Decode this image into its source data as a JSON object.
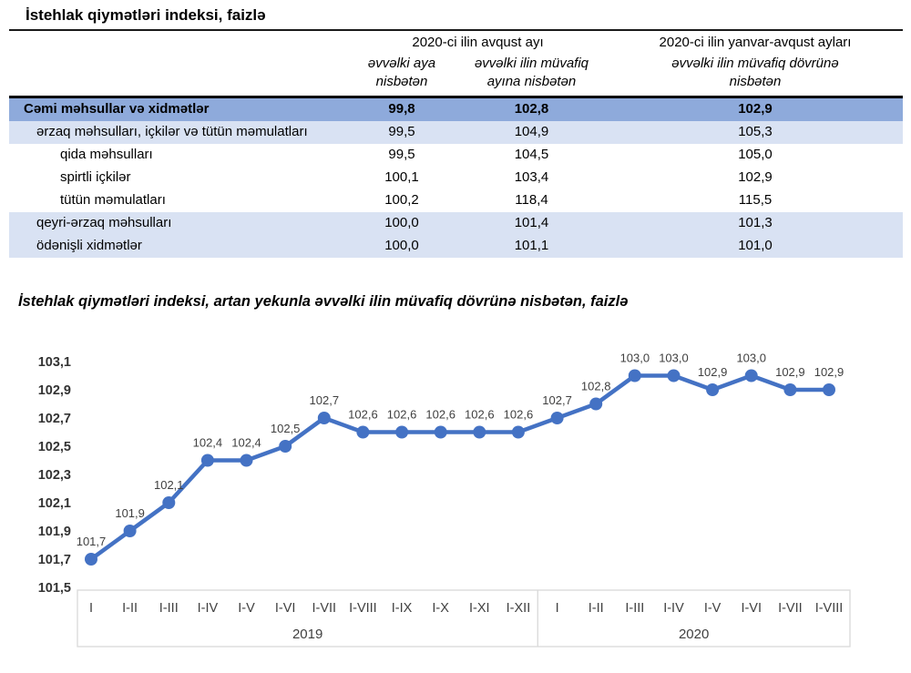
{
  "table": {
    "title": "İstehlak qiymətləri indeksi, faizlə",
    "col_groups": [
      {
        "label": "2020-ci ilin avqust ayı"
      },
      {
        "label": "2020-ci ilin yanvar-avqust ayları"
      }
    ],
    "subheaders": [
      "əvvəlki aya nisbətən",
      "əvvəlki ilin müvafiq ayına nisbətən",
      "əvvəlki ilin müvafiq dövrünə nisbətən"
    ],
    "rows": [
      {
        "label": "Cəmi məhsullar və xidmətlər",
        "values": [
          "99,8",
          "102,8",
          "102,9"
        ],
        "style": "total"
      },
      {
        "label": "ərzaq məhsulları, içkilər və tütün məmulatları",
        "values": [
          "99,5",
          "104,9",
          "105,3"
        ],
        "style": "group"
      },
      {
        "label": "qida məhsulları",
        "values": [
          "99,5",
          "104,5",
          "105,0"
        ],
        "style": "sub"
      },
      {
        "label": "spirtli içkilər",
        "values": [
          "100,1",
          "103,4",
          "102,9"
        ],
        "style": "sub"
      },
      {
        "label": "tütün məmulatları",
        "values": [
          "100,2",
          "118,4",
          "115,5"
        ],
        "style": "sub"
      },
      {
        "label": "qeyri-ərzaq məhsulları",
        "values": [
          "100,0",
          "101,4",
          "101,3"
        ],
        "style": "group"
      },
      {
        "label": "ödənişli xidmətlər",
        "values": [
          "100,0",
          "101,1",
          "101,0"
        ],
        "style": "group"
      }
    ]
  },
  "chart_data": {
    "type": "line",
    "title": "İstehlak qiymətləri indeksi, artan yekunla əvvəlki ilin müvafiq dövrünə nisbətən, faizlə",
    "x": [
      "I",
      "I-II",
      "I-III",
      "I-IV",
      "I-V",
      "I-VI",
      "I-VII",
      "I-VIII",
      "I-IX",
      "I-X",
      "I-XI",
      "I-XII",
      "I",
      "I-II",
      "I-III",
      "I-IV",
      "I-V",
      "I-VI",
      "I-VII",
      "I-VIII"
    ],
    "year_groups": [
      {
        "label": "2019",
        "count": 12
      },
      {
        "label": "2020",
        "count": 8
      }
    ],
    "values": [
      101.7,
      101.9,
      102.1,
      102.4,
      102.4,
      102.5,
      102.7,
      102.6,
      102.6,
      102.6,
      102.6,
      102.6,
      102.7,
      102.8,
      103.0,
      103.0,
      102.9,
      103.0,
      102.9,
      102.9
    ],
    "point_labels": [
      "101,7",
      "101,9",
      "102,1",
      "102,4",
      "102,4",
      "102,5",
      "102,7",
      "102,6",
      "102,6",
      "102,6",
      "102,6",
      "102,6",
      "102,7",
      "102,8",
      "103,0",
      "103,0",
      "102,9",
      "103,0",
      "102,9",
      "102,9"
    ],
    "ylim": [
      101.5,
      103.1
    ],
    "ytick_step": 0.2,
    "ytick_labels": [
      "103,1",
      "102,9",
      "102,7",
      "102,5",
      "102,3",
      "102,1",
      "101,9",
      "101,7",
      "101,5"
    ],
    "grid": false,
    "legend": "none"
  },
  "colors": {
    "line": "#4472C4",
    "table_total_bg": "#8EAADB",
    "table_alt_bg": "#D9E2F3",
    "axis_text": "#404040",
    "ylabel_text": "#333333",
    "box_border": "#D9D9D9"
  }
}
